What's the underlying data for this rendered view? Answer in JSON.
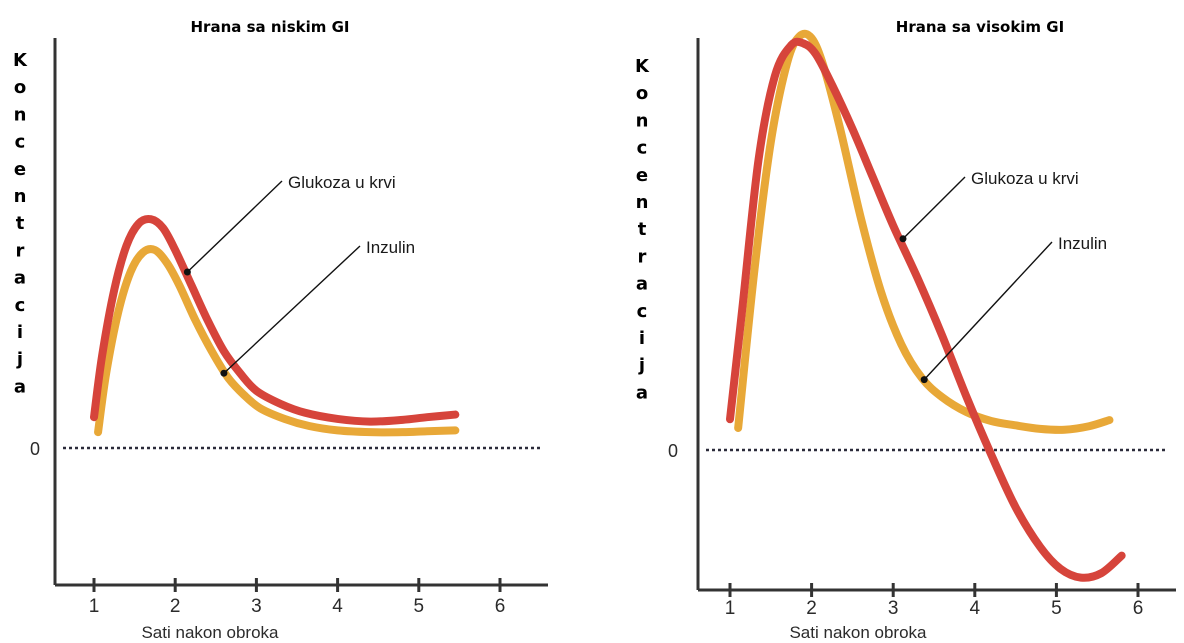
{
  "chart_data": [
    {
      "type": "line",
      "title": "Hrana sa niskim GI",
      "ylabel": "Koncentracija",
      "xlabel": "Sati nakon obroka",
      "x_ticks": [
        "1",
        "2",
        "3",
        "4",
        "5",
        "6"
      ],
      "xlim": [
        0.6,
        6.5
      ],
      "ylim": [
        -1.75,
        5.0
      ],
      "zero_label": "0",
      "zero_line": "dotted",
      "series": [
        {
          "name": "Glukoza u krvi",
          "color": "#d6443b",
          "x": [
            1.0,
            1.1,
            1.25,
            1.4,
            1.55,
            1.7,
            1.85,
            2.0,
            2.2,
            2.4,
            2.6,
            2.8,
            3.0,
            3.3,
            3.6,
            4.0,
            4.4,
            4.8,
            5.1,
            5.45
          ],
          "y": [
            0.35,
            1.05,
            1.8,
            2.3,
            2.55,
            2.6,
            2.5,
            2.25,
            1.85,
            1.45,
            1.1,
            0.85,
            0.65,
            0.5,
            0.4,
            0.33,
            0.3,
            0.32,
            0.35,
            0.38
          ]
        },
        {
          "name": "Inzulin",
          "color": "#e8a838",
          "x": [
            1.05,
            1.15,
            1.3,
            1.45,
            1.6,
            1.75,
            1.9,
            2.05,
            2.25,
            2.45,
            2.65,
            2.85,
            3.05,
            3.35,
            3.65,
            4.0,
            4.4,
            4.8,
            5.1,
            5.45
          ],
          "y": [
            0.18,
            0.85,
            1.55,
            2.0,
            2.22,
            2.25,
            2.1,
            1.85,
            1.45,
            1.1,
            0.8,
            0.6,
            0.45,
            0.33,
            0.25,
            0.2,
            0.18,
            0.18,
            0.19,
            0.2
          ]
        }
      ],
      "annotations": [
        {
          "text": "Glukoza u krvi",
          "series": "Glukoza u krvi",
          "x": 2.15,
          "y": 2.0
        },
        {
          "text": "Inzulin",
          "series": "Inzulin",
          "x": 2.6,
          "y": 0.85
        }
      ]
    },
    {
      "type": "line",
      "title": "Hrana sa visokim GI",
      "ylabel": "Koncentracija",
      "xlabel": "Sati nakon obroka",
      "x_ticks": [
        "1",
        "2",
        "3",
        "4",
        "5",
        "6"
      ],
      "xlim": [
        0.6,
        6.5
      ],
      "ylim": [
        -1.75,
        5.0
      ],
      "zero_label": "0",
      "zero_line": "dotted",
      "series": [
        {
          "name": "Glukoza u krvi",
          "color": "#d6443b",
          "x": [
            1.0,
            1.15,
            1.35,
            1.55,
            1.75,
            1.9,
            2.05,
            2.25,
            2.5,
            2.75,
            3.0,
            3.3,
            3.6,
            3.9,
            4.2,
            4.5,
            4.8,
            5.05,
            5.3,
            5.55,
            5.8
          ],
          "y": [
            0.35,
            1.6,
            3.3,
            4.25,
            4.6,
            4.62,
            4.5,
            4.15,
            3.65,
            3.1,
            2.55,
            1.95,
            1.3,
            0.6,
            -0.05,
            -0.65,
            -1.1,
            -1.35,
            -1.45,
            -1.4,
            -1.2
          ]
        },
        {
          "name": "Inzulin",
          "color": "#e8a838",
          "x": [
            1.1,
            1.3,
            1.5,
            1.7,
            1.85,
            2.0,
            2.15,
            2.35,
            2.6,
            2.85,
            3.1,
            3.35,
            3.6,
            3.9,
            4.2,
            4.5,
            4.8,
            5.1,
            5.4,
            5.65
          ],
          "y": [
            0.25,
            2.05,
            3.5,
            4.4,
            4.7,
            4.68,
            4.35,
            3.65,
            2.65,
            1.8,
            1.2,
            0.82,
            0.6,
            0.43,
            0.33,
            0.28,
            0.24,
            0.23,
            0.27,
            0.34
          ]
        }
      ],
      "annotations": [
        {
          "text": "Glukoza u krvi",
          "series": "Glukoza u krvi",
          "x": 3.12,
          "y": 2.4
        },
        {
          "text": "Inzulin",
          "series": "Inzulin",
          "x": 3.38,
          "y": 0.8
        }
      ]
    }
  ]
}
